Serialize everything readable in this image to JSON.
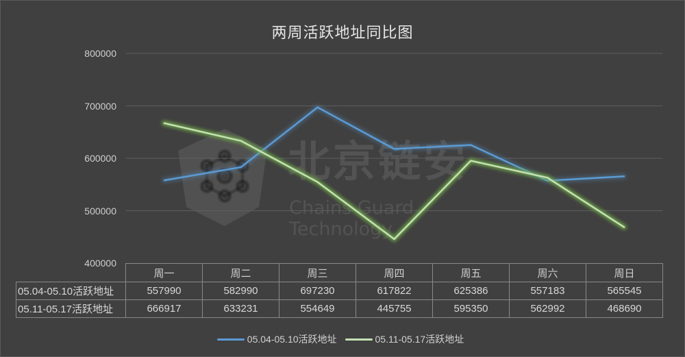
{
  "chart_data": {
    "type": "line",
    "title": "两周活跃地址同比图",
    "xlabel": "",
    "ylabel": "",
    "categories": [
      "周一",
      "周二",
      "周三",
      "周四",
      "周五",
      "周六",
      "周日"
    ],
    "series": [
      {
        "name": "05.04-05.10活跃地址",
        "color": "#5b9bd5",
        "values": [
          557990,
          582990,
          697230,
          617822,
          625386,
          557183,
          565545
        ]
      },
      {
        "name": "05.11-05.17活跃地址",
        "color": "#c5e0b4",
        "glow": "#70ad47",
        "values": [
          666917,
          633231,
          554649,
          445755,
          595350,
          562992,
          468690
        ]
      }
    ],
    "ylim": [
      400000,
      800000
    ],
    "yticks": [
      "800000",
      "700000",
      "600000",
      "500000",
      "400000"
    ],
    "grid": true,
    "legend_position": "bottom",
    "data_table": true
  },
  "watermark": {
    "cn": "北京链安",
    "en": "Chains Guard Technology"
  }
}
